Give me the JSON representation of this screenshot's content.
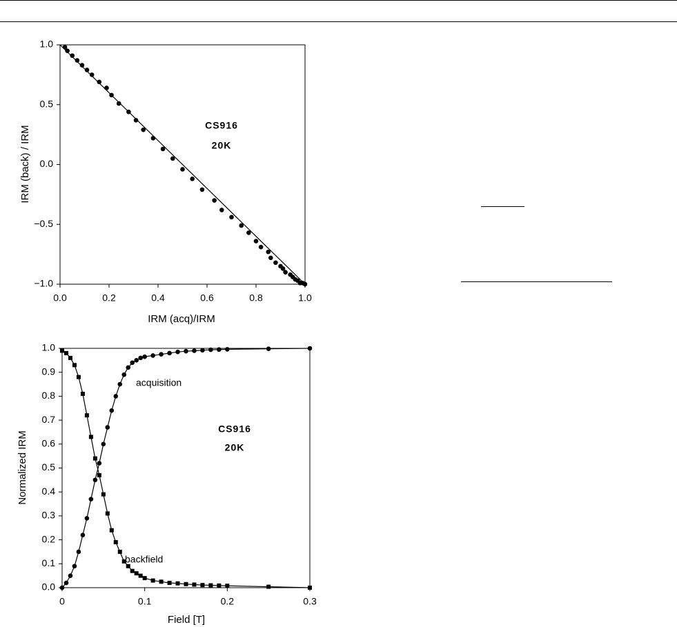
{
  "chart_data": [
    {
      "type": "scatter",
      "xlabel": "IRM (acq)/IRM",
      "ylabel": "IRM (back) / IRM",
      "annotations": [
        "CS916",
        "20K"
      ],
      "xlim": [
        0,
        1
      ],
      "ylim": [
        -1,
        1
      ],
      "xticks": [
        {
          "value": 0,
          "label": "0.0"
        },
        0.2,
        0.4,
        0.6,
        0.8,
        {
          "value": 1,
          "label": "1.0"
        }
      ],
      "yticks": [
        {
          "value": -1,
          "label": "−1.0"
        },
        {
          "value": -0.5,
          "label": "−0.5"
        },
        {
          "value": 0,
          "label": "0.0"
        },
        0.5,
        {
          "value": 1,
          "label": "1.0"
        }
      ],
      "series": [
        {
          "color": "#000000",
          "marker": "circle",
          "line": false,
          "x": [
            0.02,
            0.03,
            0.05,
            0.07,
            0.09,
            0.11,
            0.13,
            0.16,
            0.19,
            0.21,
            0.24,
            0.28,
            0.31,
            0.34,
            0.38,
            0.42,
            0.46,
            0.5,
            0.54,
            0.58,
            0.63,
            0.66,
            0.7,
            0.74,
            0.77,
            0.8,
            0.82,
            0.85,
            0.86,
            0.88,
            0.9,
            0.91,
            0.92,
            0.94,
            0.95,
            0.96,
            0.97,
            0.98,
            0.99,
            1.0
          ],
          "values": [
            0.98,
            0.95,
            0.91,
            0.87,
            0.83,
            0.79,
            0.75,
            0.69,
            0.64,
            0.58,
            0.51,
            0.44,
            0.37,
            0.29,
            0.22,
            0.13,
            0.05,
            -0.04,
            -0.12,
            -0.21,
            -0.3,
            -0.38,
            -0.44,
            -0.51,
            -0.57,
            -0.64,
            -0.69,
            -0.73,
            -0.78,
            -0.82,
            -0.85,
            -0.87,
            -0.9,
            -0.92,
            -0.94,
            -0.96,
            -0.97,
            -0.99,
            -0.99,
            -1.0
          ]
        },
        {
          "color": "#000000",
          "marker": "none",
          "line": true,
          "x": [
            0,
            1
          ],
          "values": [
            1,
            -1
          ]
        }
      ]
    },
    {
      "type": "line",
      "xlabel": "Field [T]",
      "ylabel": "Normalized IRM",
      "annotations": [
        "acquisition",
        "backfield",
        "CS916",
        "20K"
      ],
      "xlim": [
        0,
        0.3
      ],
      "ylim": [
        0,
        1
      ],
      "xticks": [
        0,
        0.1,
        0.2,
        0.3
      ],
      "yticks": [
        {
          "value": 0,
          "label": "0.0"
        },
        0.1,
        0.2,
        0.3,
        0.4,
        0.5,
        0.6,
        0.7,
        0.8,
        0.9,
        {
          "value": 1,
          "label": "1.0"
        }
      ],
      "x": [
        0,
        0.005,
        0.01,
        0.015,
        0.02,
        0.025,
        0.03,
        0.035,
        0.04,
        0.045,
        0.05,
        0.055,
        0.06,
        0.065,
        0.07,
        0.075,
        0.08,
        0.085,
        0.09,
        0.095,
        0.1,
        0.11,
        0.12,
        0.13,
        0.14,
        0.15,
        0.16,
        0.17,
        0.18,
        0.19,
        0.2,
        0.25,
        0.3
      ],
      "series": [
        {
          "color": "#000000",
          "marker": "circle",
          "line": true,
          "values": [
            0.0,
            0.02,
            0.05,
            0.09,
            0.15,
            0.22,
            0.29,
            0.37,
            0.45,
            0.52,
            0.6,
            0.67,
            0.74,
            0.8,
            0.85,
            0.89,
            0.92,
            0.94,
            0.95,
            0.96,
            0.965,
            0.97,
            0.975,
            0.98,
            0.985,
            0.988,
            0.99,
            0.992,
            0.994,
            0.995,
            0.996,
            0.998,
            1.0
          ]
        },
        {
          "color": "#000000",
          "marker": "square",
          "line": true,
          "values": [
            0.99,
            0.98,
            0.96,
            0.93,
            0.88,
            0.81,
            0.72,
            0.63,
            0.54,
            0.47,
            0.39,
            0.31,
            0.24,
            0.19,
            0.15,
            0.11,
            0.09,
            0.07,
            0.06,
            0.05,
            0.04,
            0.03,
            0.025,
            0.02,
            0.018,
            0.015,
            0.013,
            0.011,
            0.01,
            0.009,
            0.008,
            0.004,
            0.0
          ]
        }
      ]
    }
  ]
}
